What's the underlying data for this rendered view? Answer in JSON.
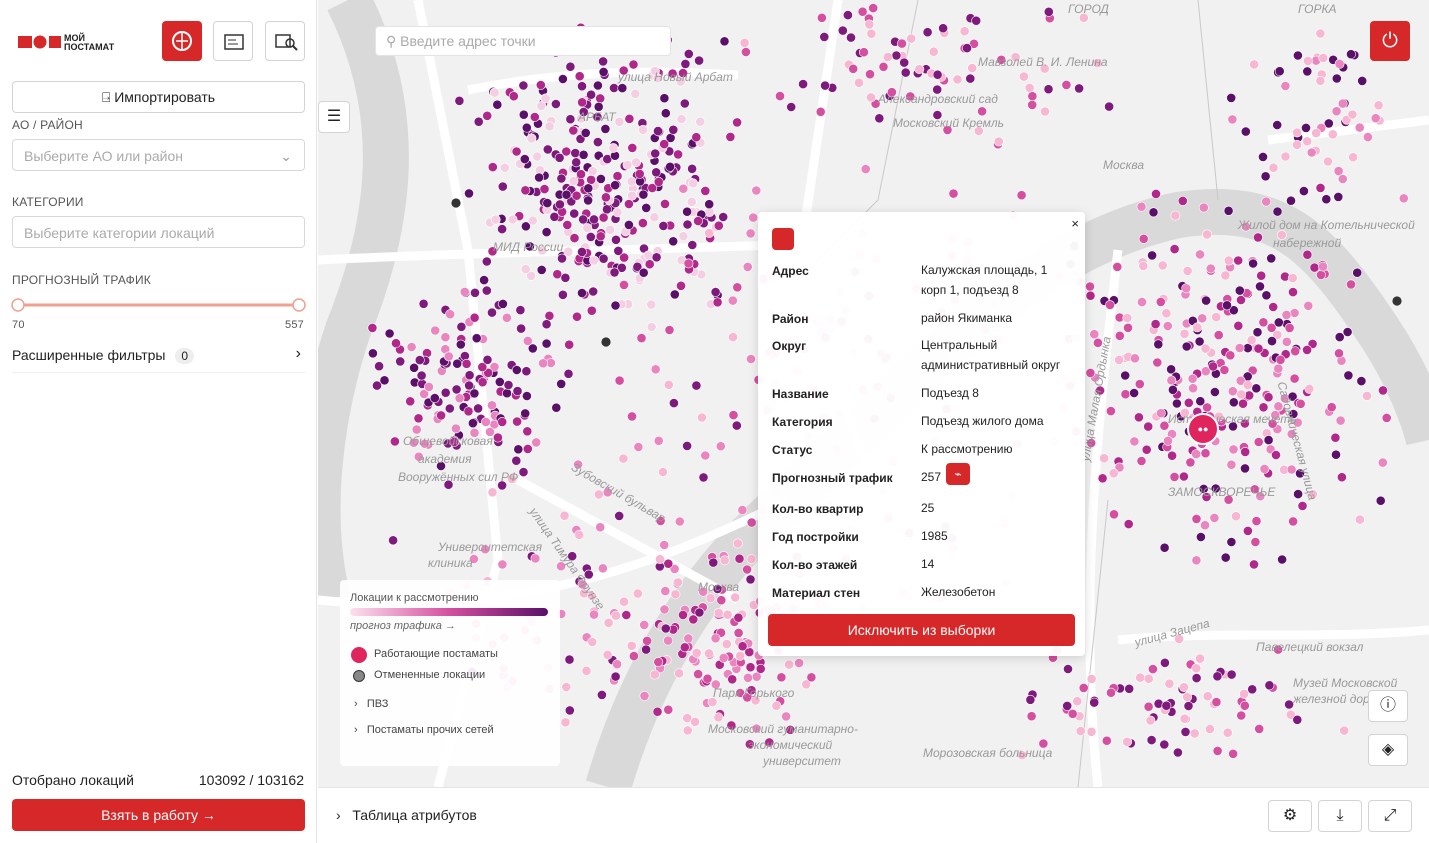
{
  "sidebar": {
    "logo": {
      "line1": "МОЙ",
      "line2": "ПОСТАМАТ"
    },
    "import_button": "Импортировать",
    "district": {
      "label": "АО / РАЙОН",
      "placeholder": "Выберите АО или район"
    },
    "categories": {
      "label": "КАТЕГОРИИ",
      "placeholder": "Выберите категории локаций"
    },
    "traffic": {
      "label": "ПРОГНОЗНЫЙ ТРАФИК",
      "min": 70,
      "max": 557
    },
    "advanced_filters": {
      "label": "Расширенные фильтры",
      "count": 0
    },
    "selected": {
      "label": "Отобрано локаций",
      "value": "103092 / 103162"
    },
    "take_button": "Взять в работу"
  },
  "map": {
    "search_placeholder": "Введите адрес точки",
    "labels": [
      "улица Новый Арбат",
      "АРБАТ",
      "Мавзолей В. И. Ленина",
      "Александровский сад",
      "Московский Кремль",
      "Москва",
      "ГОРОД",
      "ГОРКА",
      "Жилой дом на Котельнической",
      "набережной",
      "МИД России",
      "Общевойсковая",
      "академия",
      "Вооружённых сил РФ",
      "Зубовский бульвар",
      "улица Тимура Фрунзе",
      "Университетская",
      "клиника",
      "Москва",
      "Парк Горького",
      "Московский гуманитарно-",
      "экономический",
      "университет",
      "Морозовская больница",
      "ЗАМОСКВОРЕЧЬЕ",
      "улица Малая Ордынка",
      "Садовническая улица",
      "улица Зацепа",
      "Павелецкий вокзал",
      "Музей Московской",
      "железной дороги",
      "Историческая мечеть"
    ],
    "legend": {
      "title": "Локации к рассмотрению",
      "axis": "прогноз трафика →",
      "items": [
        "Работающие постаматы",
        "Отмененные локации"
      ],
      "groups": [
        "ПВЗ",
        "Постаматы прочих сетей"
      ]
    },
    "popup": {
      "rows": [
        [
          "Адрес",
          "Калужская площадь, 1 корп 1, подъезд 8"
        ],
        [
          "Район",
          "район Якиманка"
        ],
        [
          "Округ",
          "Центральный административный округ"
        ],
        [
          "Название",
          "Подъезд 8"
        ],
        [
          "Категория",
          "Подъезд жилого дома"
        ],
        [
          "Статус",
          "К рассмотрению"
        ],
        [
          "Прогнозный трафик",
          257
        ],
        [
          "Кол-во квартир",
          25
        ],
        [
          "Год постройки",
          1985
        ],
        [
          "Кол-во этажей",
          14
        ],
        [
          "Материал стен",
          "Железобетон"
        ]
      ],
      "button": "Исключить из выборки"
    },
    "attributes_table": "Таблица атрибутов"
  }
}
